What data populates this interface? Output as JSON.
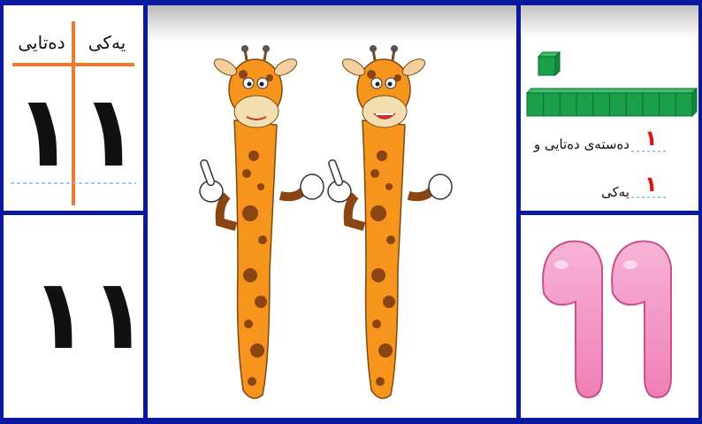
{
  "place_value_chart": {
    "tens_header": "دەتایی",
    "ones_header": "یەکی",
    "tens_digit": "١",
    "ones_digit": "١"
  },
  "written_number": {
    "digits": "١١"
  },
  "decomposition": {
    "tens_count": "١",
    "tens_label": "دەستەی دەتایی و",
    "ones_count": "١",
    "ones_label": "یەکی"
  },
  "colors": {
    "frame": "#0a1aa0",
    "chart_lines": "#f07a2a",
    "block_green": "#1aa04a",
    "red_number": "#e01010",
    "pink_number": "#f59ac8",
    "giraffe_body": "#f7941d",
    "giraffe_spot": "#8b4513"
  },
  "icons": [
    "giraffe-left-illustration",
    "giraffe-right-illustration",
    "unit-cube-icon",
    "ten-rod-icon"
  ]
}
